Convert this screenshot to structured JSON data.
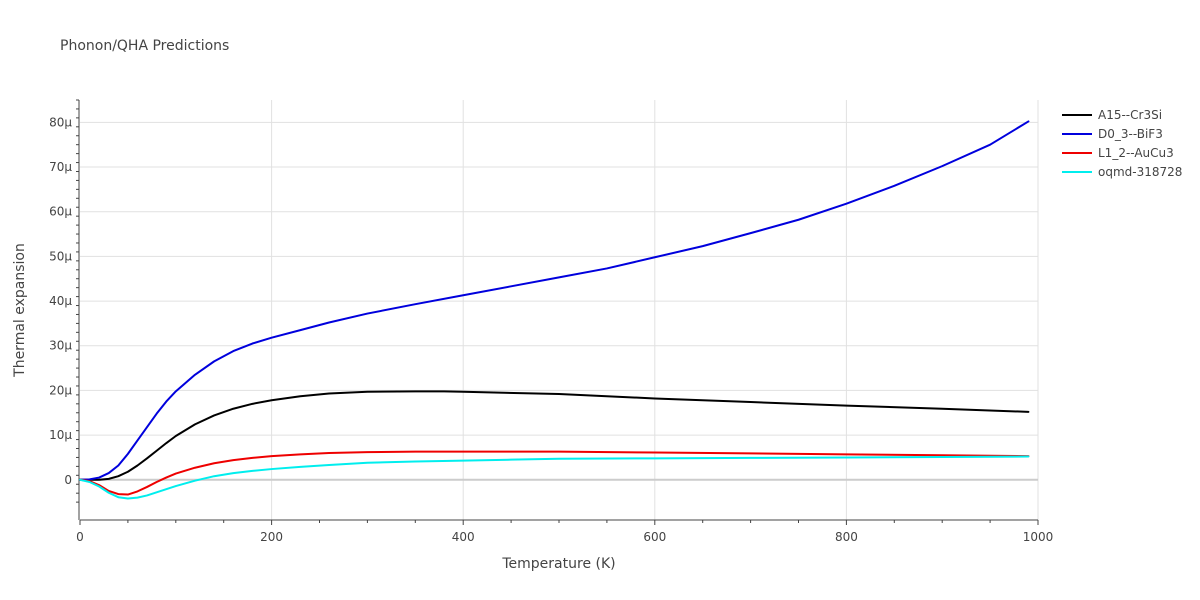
{
  "chart_data": {
    "type": "line",
    "title": "Phonon/QHA Predictions",
    "xlabel": "Temperature (K)",
    "ylabel": "Thermal expansion",
    "xlim": [
      0,
      1000
    ],
    "ylim": [
      -9,
      85
    ],
    "x_ticks": [
      0,
      200,
      400,
      600,
      800,
      1000
    ],
    "x_tick_labels": [
      "0",
      "200",
      "400",
      "600",
      "800",
      "1000"
    ],
    "y_ticks": [
      0,
      10,
      20,
      30,
      40,
      50,
      60,
      70,
      80
    ],
    "y_tick_labels": [
      "0",
      "10μ",
      "20μ",
      "30μ",
      "40μ",
      "50μ",
      "60μ",
      "70μ",
      "80μ"
    ],
    "grid": true,
    "legend_position": "right",
    "series": [
      {
        "name": "A15--Cr3Si",
        "color": "#000000",
        "x": [
          0,
          10,
          20,
          30,
          40,
          50,
          60,
          70,
          80,
          90,
          100,
          120,
          140,
          160,
          180,
          200,
          230,
          260,
          300,
          350,
          380,
          400,
          500,
          600,
          700,
          800,
          900,
          990
        ],
        "y": [
          0,
          0,
          0,
          0.2,
          0.8,
          1.8,
          3.2,
          4.8,
          6.5,
          8.2,
          9.8,
          12.4,
          14.4,
          15.9,
          17.0,
          17.8,
          18.7,
          19.3,
          19.7,
          19.8,
          19.8,
          19.7,
          19.2,
          18.2,
          17.4,
          16.6,
          15.9,
          15.2
        ]
      },
      {
        "name": "D0_3--BiF3",
        "color": "#0000dd",
        "x": [
          0,
          10,
          20,
          30,
          40,
          50,
          60,
          70,
          80,
          90,
          100,
          120,
          140,
          160,
          180,
          200,
          230,
          260,
          300,
          350,
          400,
          450,
          500,
          550,
          600,
          650,
          700,
          750,
          800,
          850,
          900,
          950,
          990
        ],
        "y": [
          0,
          0.1,
          0.5,
          1.5,
          3.2,
          5.8,
          8.8,
          11.8,
          14.8,
          17.5,
          19.8,
          23.5,
          26.5,
          28.8,
          30.5,
          31.8,
          33.5,
          35.2,
          37.2,
          39.3,
          41.3,
          43.3,
          45.3,
          47.3,
          49.8,
          52.3,
          55.2,
          58.2,
          61.8,
          65.8,
          70.2,
          75.0,
          80.2
        ]
      },
      {
        "name": "L1_2--AuCu3",
        "color": "#ee0000",
        "x": [
          0,
          10,
          20,
          30,
          40,
          50,
          60,
          70,
          80,
          90,
          100,
          120,
          140,
          160,
          180,
          200,
          230,
          260,
          300,
          350,
          400,
          450,
          500,
          600,
          700,
          800,
          900,
          990
        ],
        "y": [
          0,
          -0.3,
          -1.2,
          -2.5,
          -3.2,
          -3.3,
          -2.6,
          -1.6,
          -0.5,
          0.5,
          1.4,
          2.7,
          3.7,
          4.4,
          4.9,
          5.3,
          5.7,
          6.0,
          6.2,
          6.3,
          6.3,
          6.3,
          6.3,
          6.1,
          5.9,
          5.7,
          5.5,
          5.3
        ]
      },
      {
        "name": "oqmd-318728",
        "color": "#00eeee",
        "x": [
          0,
          10,
          20,
          30,
          40,
          50,
          60,
          70,
          80,
          90,
          100,
          120,
          140,
          160,
          180,
          200,
          230,
          260,
          300,
          350,
          400,
          450,
          500,
          600,
          700,
          800,
          900,
          990
        ],
        "y": [
          0,
          -0.5,
          -1.5,
          -2.9,
          -3.9,
          -4.2,
          -4.0,
          -3.5,
          -2.8,
          -2.1,
          -1.4,
          -0.2,
          0.8,
          1.5,
          2.0,
          2.4,
          2.9,
          3.3,
          3.8,
          4.1,
          4.3,
          4.5,
          4.7,
          4.8,
          4.9,
          5.0,
          5.1,
          5.2
        ]
      }
    ]
  }
}
